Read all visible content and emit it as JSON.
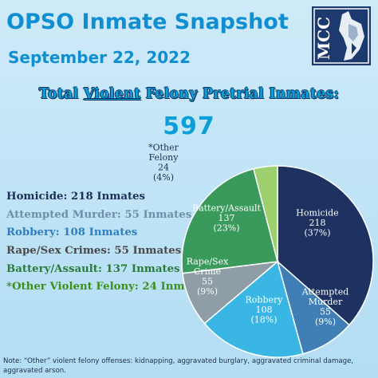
{
  "header": {
    "title": "OPSO Inmate Snapshot",
    "date": "September 22, 2022",
    "logo_text": "MCC"
  },
  "headline": {
    "prefix": "Total",
    "emphasis": "Violent",
    "suffix": "Felony Pretrial Inmates:",
    "total": "597"
  },
  "legend": [
    {
      "text": "Homicide: 218 Inmates",
      "color": "#1b2f57"
    },
    {
      "text": "Attempted Murder: 55 Inmates",
      "color": "#6f8fa8"
    },
    {
      "text": "Robbery: 108 Inmates",
      "color": "#2f7fbe"
    },
    {
      "text": "Rape/Sex Crimes: 55 Inmates",
      "color": "#4a4a4a"
    },
    {
      "text": "Battery/Assault: 137 Inmates",
      "color": "#2a7a3a"
    },
    {
      "text": "*Other Violent Felony: 24 Inmates",
      "color": "#3e8f1a"
    }
  ],
  "chart_data": {
    "type": "pie",
    "title": "Total Violent Felony Pretrial Inmates: 597",
    "slices": [
      {
        "label": "Homicide",
        "value": 218,
        "percent": "37%",
        "color": "#1d3260"
      },
      {
        "label": "Attempted Murder",
        "value": 55,
        "percent": "9%",
        "color": "#3f7fb5"
      },
      {
        "label": "Robbery",
        "value": 108,
        "percent": "18%",
        "color": "#39b6e3"
      },
      {
        "label": "Rape/Sex Crime",
        "value": 55,
        "percent": "9%",
        "color": "#8f9da7"
      },
      {
        "label": "Battery/Assault",
        "value": 137,
        "percent": "23%",
        "color": "#3a9a5b"
      },
      {
        "label": "*Other Felony",
        "value": 24,
        "percent": "4%",
        "color": "#9ccf6d"
      }
    ]
  },
  "footnote": "Note: “Other” violent felony offenses:  kidnapping, aggravated burglary, aggravated criminal damage,  aggravated arson."
}
